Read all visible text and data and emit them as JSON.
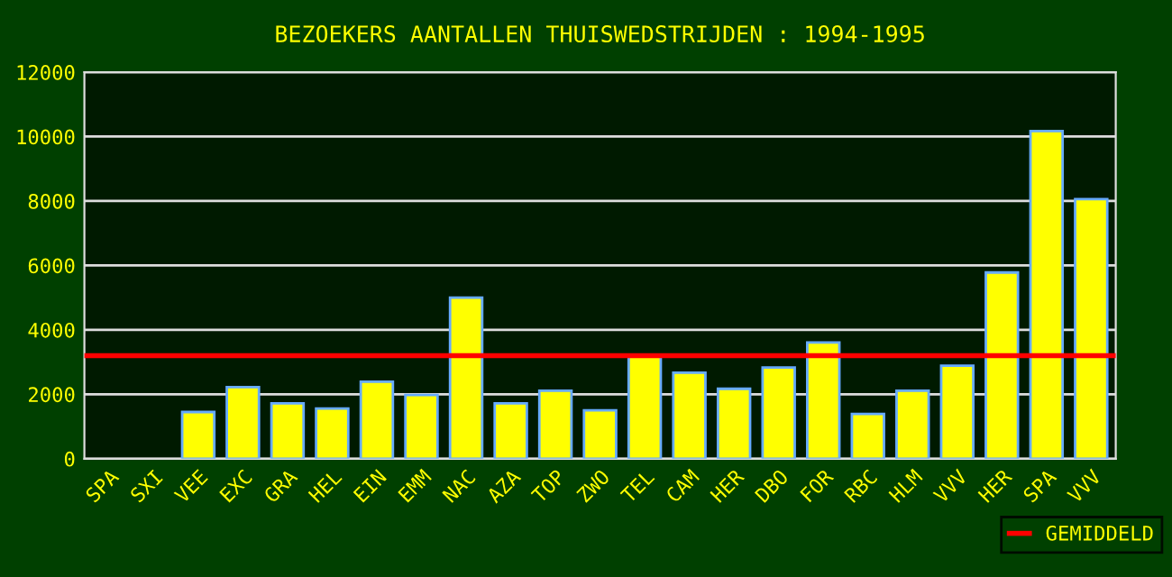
{
  "chart_data": {
    "type": "bar",
    "title": "BEZOEKERS AANTALLEN THUISWEDSTRIJDEN : 1994-1995",
    "categories": [
      "SPA",
      "SXI",
      "VEE",
      "EXC",
      "GRA",
      "HEL",
      "EIN",
      "EMM",
      "NAC",
      "AZA",
      "TOP",
      "ZWO",
      "TEL",
      "CAM",
      "HER",
      "DBO",
      "FOR",
      "RBC",
      "HLM",
      "VVV",
      "HER",
      "SPA",
      "VVV"
    ],
    "values": [
      null,
      null,
      1450,
      2220,
      1720,
      1560,
      2390,
      1980,
      5000,
      1720,
      2110,
      1500,
      3170,
      2670,
      2170,
      2830,
      3610,
      1390,
      2110,
      2890,
      5780,
      10170,
      8060
    ],
    "color": "#ffff00",
    "ylim": [
      0,
      12000
    ],
    "yticks": [
      0,
      2000,
      4000,
      6000,
      8000,
      10000,
      12000
    ],
    "grid": "y",
    "ref_lines": [
      {
        "axis": "y",
        "value": 3200,
        "label": "GEMIDDELD",
        "color": "#ff0000"
      }
    ],
    "legend": "bottom right"
  }
}
